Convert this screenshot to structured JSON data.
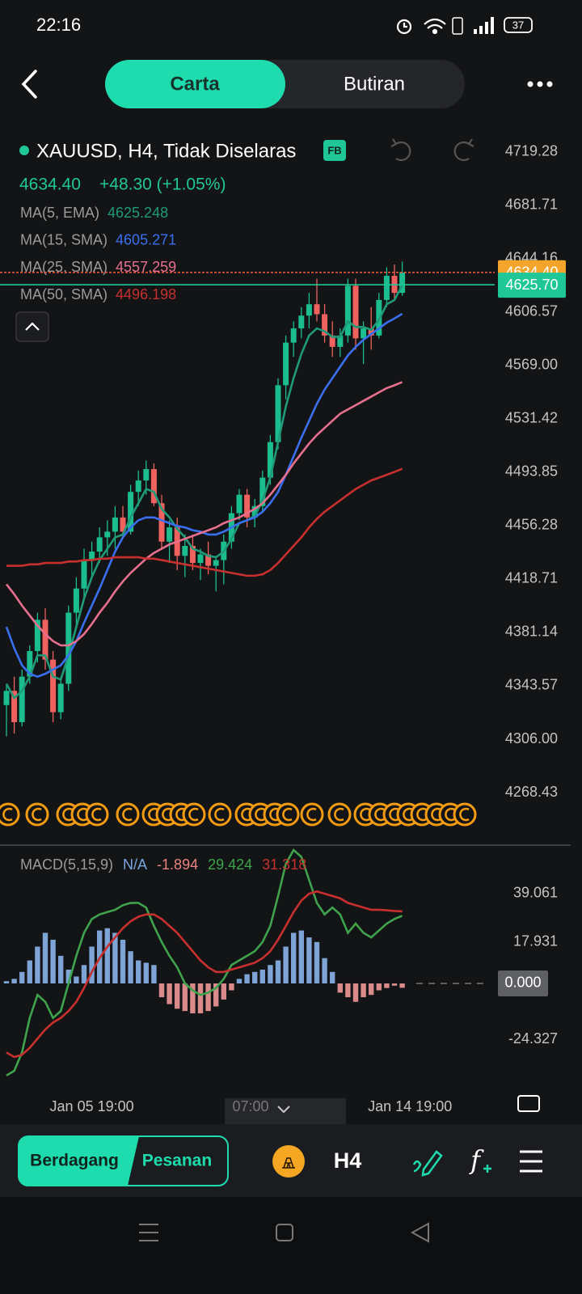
{
  "status_bar": {
    "time": "22:16",
    "battery": "37"
  },
  "tabs": [
    "Carta",
    "Butiran"
  ],
  "header": {
    "symbol": "XAUUSD, H4, Tidak Diselaras",
    "badge": "FB",
    "price": "4634.40",
    "change": "+48.30 (+1.05%)"
  },
  "scroll_label": "07:00",
  "toolbar": {
    "trade": "Berdagang",
    "orders": "Pesanan",
    "timeframe": "H4",
    "indicator": "f"
  },
  "chart_data": [
    {
      "type": "candlestick",
      "up_color": "#1bbd8e",
      "down_color": "#f0625f",
      "ylim": [
        4240,
        4735
      ],
      "yticks": [
        4719.28,
        4681.71,
        4644.16,
        4606.57,
        {
          "value": 4569,
          "label": "4569.00"
        },
        4531.42,
        4493.85,
        4456.28,
        4418.71,
        4381.14,
        4343.57,
        {
          "value": 4306,
          "label": "4306.00"
        },
        4268.43
      ],
      "candles": [
        [
          4330,
          4345,
          4308,
          4340
        ],
        [
          4340,
          4350,
          4310,
          4318
        ],
        [
          4318,
          4355,
          4315,
          4350
        ],
        [
          4350,
          4372,
          4345,
          4368
        ],
        [
          4368,
          4395,
          4360,
          4390
        ],
        [
          4390,
          4398,
          4355,
          4362
        ],
        [
          4362,
          4368,
          4318,
          4325
        ],
        [
          4325,
          4350,
          4320,
          4345
        ],
        [
          4345,
          4400,
          4340,
          4395
        ],
        [
          4395,
          4420,
          4385,
          4412
        ],
        [
          4412,
          4440,
          4405,
          4432
        ],
        [
          4432,
          4445,
          4420,
          4438
        ],
        [
          4438,
          4455,
          4430,
          4448
        ],
        [
          4448,
          4460,
          4435,
          4452
        ],
        [
          4452,
          4470,
          4440,
          4462
        ],
        [
          4462,
          4470,
          4448,
          4452
        ],
        [
          4452,
          4485,
          4450,
          4480
        ],
        [
          4480,
          4495,
          4470,
          4488
        ],
        [
          4488,
          4502,
          4478,
          4496
        ],
        [
          4496,
          4500,
          4470,
          4472
        ],
        [
          4472,
          4478,
          4440,
          4445
        ],
        [
          4445,
          4460,
          4430,
          4455
        ],
        [
          4455,
          4462,
          4425,
          4435
        ],
        [
          4435,
          4450,
          4420,
          4442
        ],
        [
          4442,
          4450,
          4425,
          4430
        ],
        [
          4430,
          4440,
          4418,
          4436
        ],
        [
          4436,
          4445,
          4422,
          4428
        ],
        [
          4428,
          4435,
          4410,
          4432
        ],
        [
          4432,
          4450,
          4415,
          4445
        ],
        [
          4445,
          4470,
          4440,
          4465
        ],
        [
          4465,
          4482,
          4460,
          4478
        ],
        [
          4478,
          4482,
          4455,
          4462
        ],
        [
          4462,
          4475,
          4455,
          4470
        ],
        [
          4470,
          4495,
          4465,
          4490
        ],
        [
          4490,
          4520,
          4485,
          4515
        ],
        [
          4515,
          4560,
          4510,
          4555
        ],
        [
          4555,
          4590,
          4545,
          4585
        ],
        [
          4585,
          4600,
          4575,
          4595
        ],
        [
          4595,
          4610,
          4588,
          4604
        ],
        [
          4604,
          4620,
          4595,
          4612
        ],
        [
          4612,
          4630,
          4600,
          4605
        ],
        [
          4605,
          4612,
          4585,
          4590
        ],
        [
          4590,
          4600,
          4575,
          4582
        ],
        [
          4582,
          4595,
          4575,
          4590
        ],
        [
          4590,
          4630,
          4585,
          4625
        ],
        [
          4625,
          4630,
          4580,
          4588
        ],
        [
          4588,
          4600,
          4570,
          4595
        ],
        [
          4595,
          4610,
          4580,
          4590
        ],
        [
          4590,
          4620,
          4588,
          4615
        ],
        [
          4615,
          4638,
          4610,
          4632
        ],
        [
          4632,
          4640,
          4615,
          4620
        ],
        [
          4620,
          4642,
          4618,
          4634.4
        ]
      ],
      "series": [
        {
          "name": "MA(5, EMA)",
          "color": "#1f9a78",
          "values": [
            4345,
            4335,
            4340,
            4350,
            4365,
            4365,
            4350,
            4348,
            4365,
            4385,
            4405,
            4420,
            4432,
            4440,
            4448,
            4450,
            4462,
            4472,
            4482,
            4480,
            4468,
            4462,
            4454,
            4448,
            4440,
            4438,
            4435,
            4434,
            4438,
            4447,
            4458,
            4460,
            4463,
            4474,
            4490,
            4515,
            4540,
            4560,
            4577,
            4590,
            4595,
            4593,
            4589,
            4589,
            4600,
            4596,
            4596,
            4594,
            4601,
            4612,
            4615,
            4625.248
          ]
        },
        {
          "name": "MA(15, SMA)",
          "color": "#3a6ff0",
          "values": [
            4385,
            4370,
            4358,
            4352,
            4350,
            4352,
            4355,
            4358,
            4365,
            4375,
            4388,
            4400,
            4412,
            4425,
            4438,
            4448,
            4455,
            4460,
            4462,
            4462,
            4460,
            4458,
            4456,
            4455,
            4453,
            4452,
            4450,
            4450,
            4452,
            4455,
            4458,
            4460,
            4462,
            4466,
            4472,
            4480,
            4492,
            4505,
            4518,
            4530,
            4542,
            4552,
            4560,
            4568,
            4576,
            4582,
            4587,
            4591,
            4595,
            4599,
            4602,
            4605.271
          ]
        },
        {
          "name": "MA(25, SMA)",
          "color": "#e8708f",
          "values": [
            4415,
            4408,
            4400,
            4393,
            4386,
            4380,
            4375,
            4372,
            4372,
            4375,
            4380,
            4387,
            4395,
            4402,
            4410,
            4417,
            4423,
            4428,
            4433,
            4437,
            4440,
            4443,
            4445,
            4447,
            4449,
            4451,
            4453,
            4455,
            4458,
            4460,
            4462,
            4465,
            4468,
            4472,
            4478,
            4485,
            4492,
            4500,
            4507,
            4514,
            4520,
            4525,
            4530,
            4535,
            4538,
            4541,
            4544,
            4547,
            4550,
            4553,
            4555,
            4557.259
          ]
        },
        {
          "name": "MA(50, SMA)",
          "color": "#c7302e",
          "values": [
            4428,
            4428,
            4428,
            4429,
            4429,
            4430,
            4430,
            4430,
            4431,
            4431,
            4432,
            4432,
            4433,
            4433,
            4434,
            4434,
            4434,
            4434,
            4433,
            4433,
            4432,
            4431,
            4430,
            4429,
            4428,
            4427,
            4426,
            4425,
            4424,
            4423,
            4422,
            4421,
            4421,
            4422,
            4425,
            4430,
            4436,
            4442,
            4448,
            4455,
            4461,
            4466,
            4470,
            4474,
            4478,
            4482,
            4485,
            4488,
            4490,
            4492,
            4494,
            4496.198
          ]
        }
      ],
      "price_lines": [
        {
          "value": 4634.4,
          "label": "4634.40",
          "color": "#f2a52a"
        },
        {
          "value": 4625.7,
          "label": "4625.70",
          "color": "#1fc796"
        }
      ]
    },
    {
      "type": "macd",
      "title": "MACD(5,15,9)",
      "status": "N/A",
      "status_color": "#7aa6e0",
      "ylim": [
        -45,
        58
      ],
      "yticks": [
        39.061,
        17.931,
        {
          "value": 0,
          "label": "0.000"
        },
        -24.327
      ],
      "xticks": [
        {
          "value": 11,
          "label": "Jan 05 19:00"
        },
        {
          "value": 52,
          "label": "Jan 14 19:00"
        }
      ],
      "series": [
        {
          "style": "bar",
          "color": "#7ea4d6",
          "negative_color": "#d98a8a",
          "values": [
            1,
            2,
            5,
            10,
            16,
            22,
            19,
            12,
            6,
            3,
            8,
            16,
            23,
            24,
            22,
            19,
            14,
            10,
            9,
            8,
            -6,
            -9,
            -11,
            -12,
            -13,
            -13,
            -12,
            -10,
            -7,
            -3,
            2,
            4,
            5,
            6,
            8,
            10,
            16,
            22,
            23,
            20,
            18,
            11,
            5,
            -4,
            -6,
            -8,
            -6,
            -5,
            -3,
            -2,
            -1,
            -1.894
          ]
        },
        {
          "style": "line",
          "color": "#3fa34d",
          "values": [
            -40,
            -38,
            -30,
            -15,
            -5,
            -8,
            -15,
            -12,
            0,
            12,
            22,
            28,
            30,
            31,
            32,
            34,
            35,
            35,
            33,
            25,
            18,
            12,
            7,
            0,
            -3,
            -5,
            -4,
            -2,
            2,
            8,
            10,
            12,
            14,
            18,
            25,
            38,
            52,
            58,
            55,
            45,
            35,
            30,
            33,
            30,
            22,
            26,
            22,
            20,
            23,
            26,
            28,
            29.424
          ]
        },
        {
          "style": "line",
          "color": "#c7302e",
          "values": [
            -30,
            -32,
            -31,
            -28,
            -24,
            -20,
            -17,
            -15,
            -12,
            -8,
            -2,
            5,
            11,
            16,
            20,
            24,
            27,
            29,
            30,
            30,
            28,
            25,
            22,
            18,
            14,
            10,
            7,
            5,
            5,
            6,
            7,
            8,
            9,
            11,
            14,
            19,
            25,
            31,
            36,
            39,
            40,
            39,
            38,
            37,
            35,
            34,
            33,
            32,
            32,
            31.8,
            31.5,
            31.318
          ]
        }
      ]
    }
  ]
}
